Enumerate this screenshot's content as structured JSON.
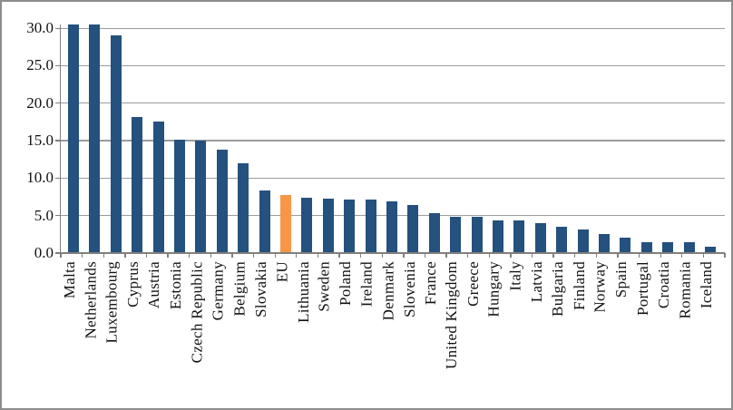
{
  "frame": {
    "background": "#FFFFFF",
    "border_color": "#8C8C8C",
    "gridline_color": "#9C9C9C",
    "axis_color": "#808080",
    "text_color": "#111111"
  },
  "chart_data": {
    "type": "bar",
    "title": "",
    "xlabel": "",
    "ylabel": "",
    "categories": [
      "Malta",
      "Netherlands",
      "Luxembourg",
      "Cyprus",
      "Austria",
      "Estonia",
      "Czech Republic",
      "Germany",
      "Belgium",
      "Slovakia",
      "EU",
      "Lithuania",
      "Sweden",
      "Poland",
      "Ireland",
      "Denmark",
      "Slovenia",
      "France",
      "United Kingdom",
      "Greece",
      "Hungary",
      "Italy",
      "Latvia",
      "Bulgaria",
      "Finland",
      "Norway",
      "Spain",
      "Portugal",
      "Croatia",
      "Romania",
      "Iceland"
    ],
    "values": [
      30.5,
      30.5,
      29.0,
      18.2,
      17.6,
      15.1,
      15.0,
      13.8,
      12.0,
      8.4,
      7.7,
      7.4,
      7.3,
      7.2,
      7.1,
      6.9,
      6.4,
      5.3,
      4.9,
      4.8,
      4.4,
      4.3,
      4.0,
      3.5,
      3.2,
      2.5,
      2.1,
      1.5,
      1.4,
      1.4,
      0.9
    ],
    "clipped_categories": [
      "Malta",
      "Netherlands"
    ],
    "highlight_category": "EU",
    "bar_color": "#24517E",
    "highlight_color": "#F79646",
    "ylim": [
      0,
      30.5
    ],
    "ytick_interval": 5,
    "ytick_labels": [
      "0.0",
      "5.0",
      "10.0",
      "15.0",
      "20.0",
      "25.0",
      "30.0"
    ],
    "grid": true,
    "legend": "none"
  }
}
